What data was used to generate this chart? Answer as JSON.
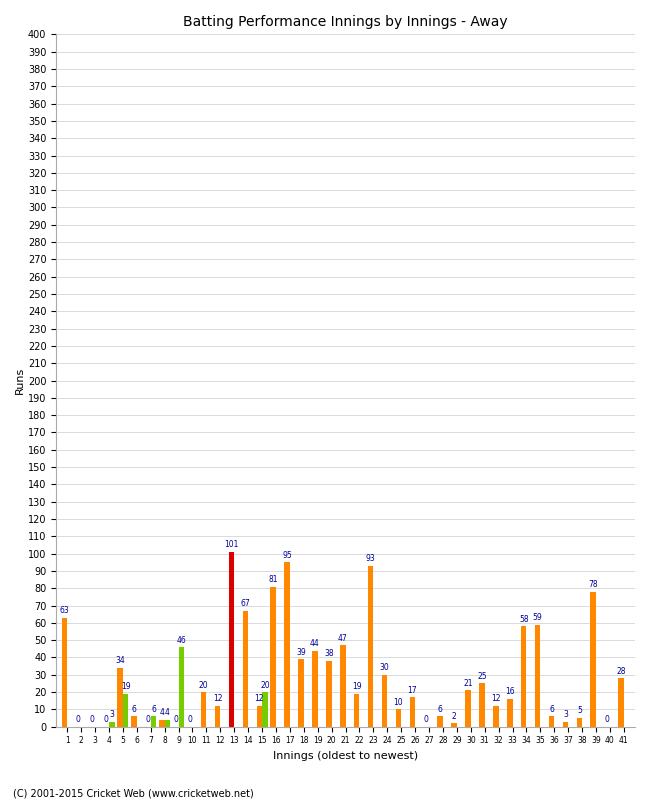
{
  "title": "Batting Performance Innings by Innings - Away",
  "xlabel": "Innings (oldest to newest)",
  "ylabel": "Runs",
  "ylim": [
    0,
    400
  ],
  "innings": [
    1,
    2,
    3,
    4,
    5,
    6,
    7,
    8,
    9,
    10,
    11,
    12,
    13,
    14,
    15,
    16,
    17,
    18,
    19,
    20,
    21,
    22,
    23,
    24,
    25,
    26,
    27,
    28,
    29,
    30,
    31,
    32,
    33,
    34,
    35,
    36,
    37,
    38,
    39,
    40,
    41
  ],
  "orange_vals": [
    63,
    0,
    0,
    0,
    34,
    6,
    0,
    4,
    0,
    0,
    20,
    12,
    101,
    67,
    12,
    81,
    95,
    39,
    44,
    38,
    47,
    19,
    93,
    30,
    10,
    17,
    0,
    6,
    2,
    21,
    25,
    12,
    16,
    58,
    59,
    6,
    3,
    5,
    78,
    0,
    28
  ],
  "green_vals": [
    0,
    0,
    0,
    3,
    19,
    0,
    6,
    4,
    46,
    0,
    0,
    0,
    0,
    0,
    20,
    0,
    0,
    0,
    0,
    0,
    0,
    0,
    0,
    0,
    0,
    0,
    0,
    0,
    0,
    0,
    0,
    0,
    0,
    0,
    0,
    0,
    0,
    0,
    0,
    0,
    0
  ],
  "century_inning_idx": 12,
  "orange_color": "#ff8800",
  "green_color": "#77cc00",
  "red_color": "#dd0000",
  "label_color": "#000099",
  "grid_color": "#cccccc",
  "background_color": "#ffffff",
  "footnote": "(C) 2001-2015 Cricket Web (www.cricketweb.net)"
}
